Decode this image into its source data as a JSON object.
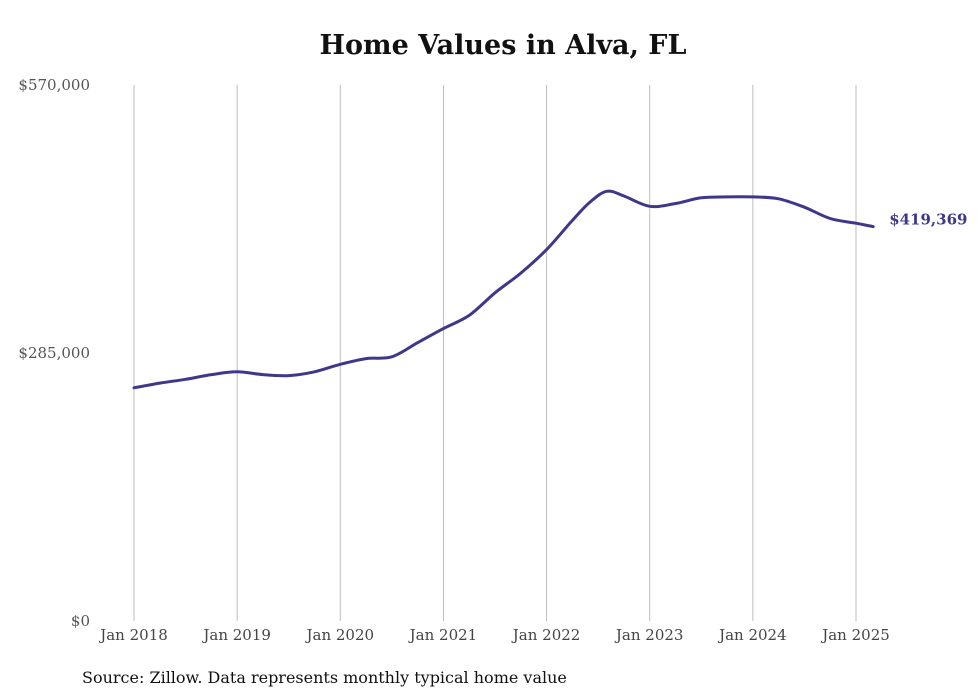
{
  "chart_data": {
    "type": "line",
    "title": "Home Values in Alva, FL",
    "xlabel": "",
    "ylabel": "",
    "ylim": [
      0,
      570000
    ],
    "yticks": [
      {
        "value": 0,
        "label": "$0"
      },
      {
        "value": 285000,
        "label": "$285,000"
      },
      {
        "value": 570000,
        "label": "$570,000"
      }
    ],
    "xticks": [
      {
        "date": "2018-01",
        "label": "Jan 2018"
      },
      {
        "date": "2019-01",
        "label": "Jan 2019"
      },
      {
        "date": "2020-01",
        "label": "Jan 2020"
      },
      {
        "date": "2021-01",
        "label": "Jan 2021"
      },
      {
        "date": "2022-01",
        "label": "Jan 2022"
      },
      {
        "date": "2023-01",
        "label": "Jan 2023"
      },
      {
        "date": "2024-01",
        "label": "Jan 2024"
      },
      {
        "date": "2025-01",
        "label": "Jan 2025"
      }
    ],
    "grid": {
      "vertical": true,
      "horizontal": false
    },
    "line_color": "#3e378a",
    "end_label": "$419,369",
    "x": [
      "2018-01",
      "2018-04",
      "2018-07",
      "2018-10",
      "2019-01",
      "2019-04",
      "2019-07",
      "2019-10",
      "2020-01",
      "2020-04",
      "2020-07",
      "2020-10",
      "2021-01",
      "2021-04",
      "2021-07",
      "2021-10",
      "2022-01",
      "2022-04",
      "2022-06",
      "2022-08",
      "2022-10",
      "2023-01",
      "2023-04",
      "2023-07",
      "2023-10",
      "2024-01",
      "2024-04",
      "2024-07",
      "2024-10",
      "2025-01",
      "2025-03"
    ],
    "values": [
      248000,
      253000,
      257000,
      262000,
      265000,
      262000,
      261000,
      265000,
      273000,
      279000,
      281000,
      296000,
      311000,
      325000,
      349000,
      370000,
      395000,
      426000,
      445000,
      457000,
      452000,
      441000,
      444000,
      450000,
      451000,
      451000,
      449000,
      440000,
      428000,
      423000,
      419369
    ]
  },
  "source_note": "Source: Zillow. Data represents monthly typical home value"
}
